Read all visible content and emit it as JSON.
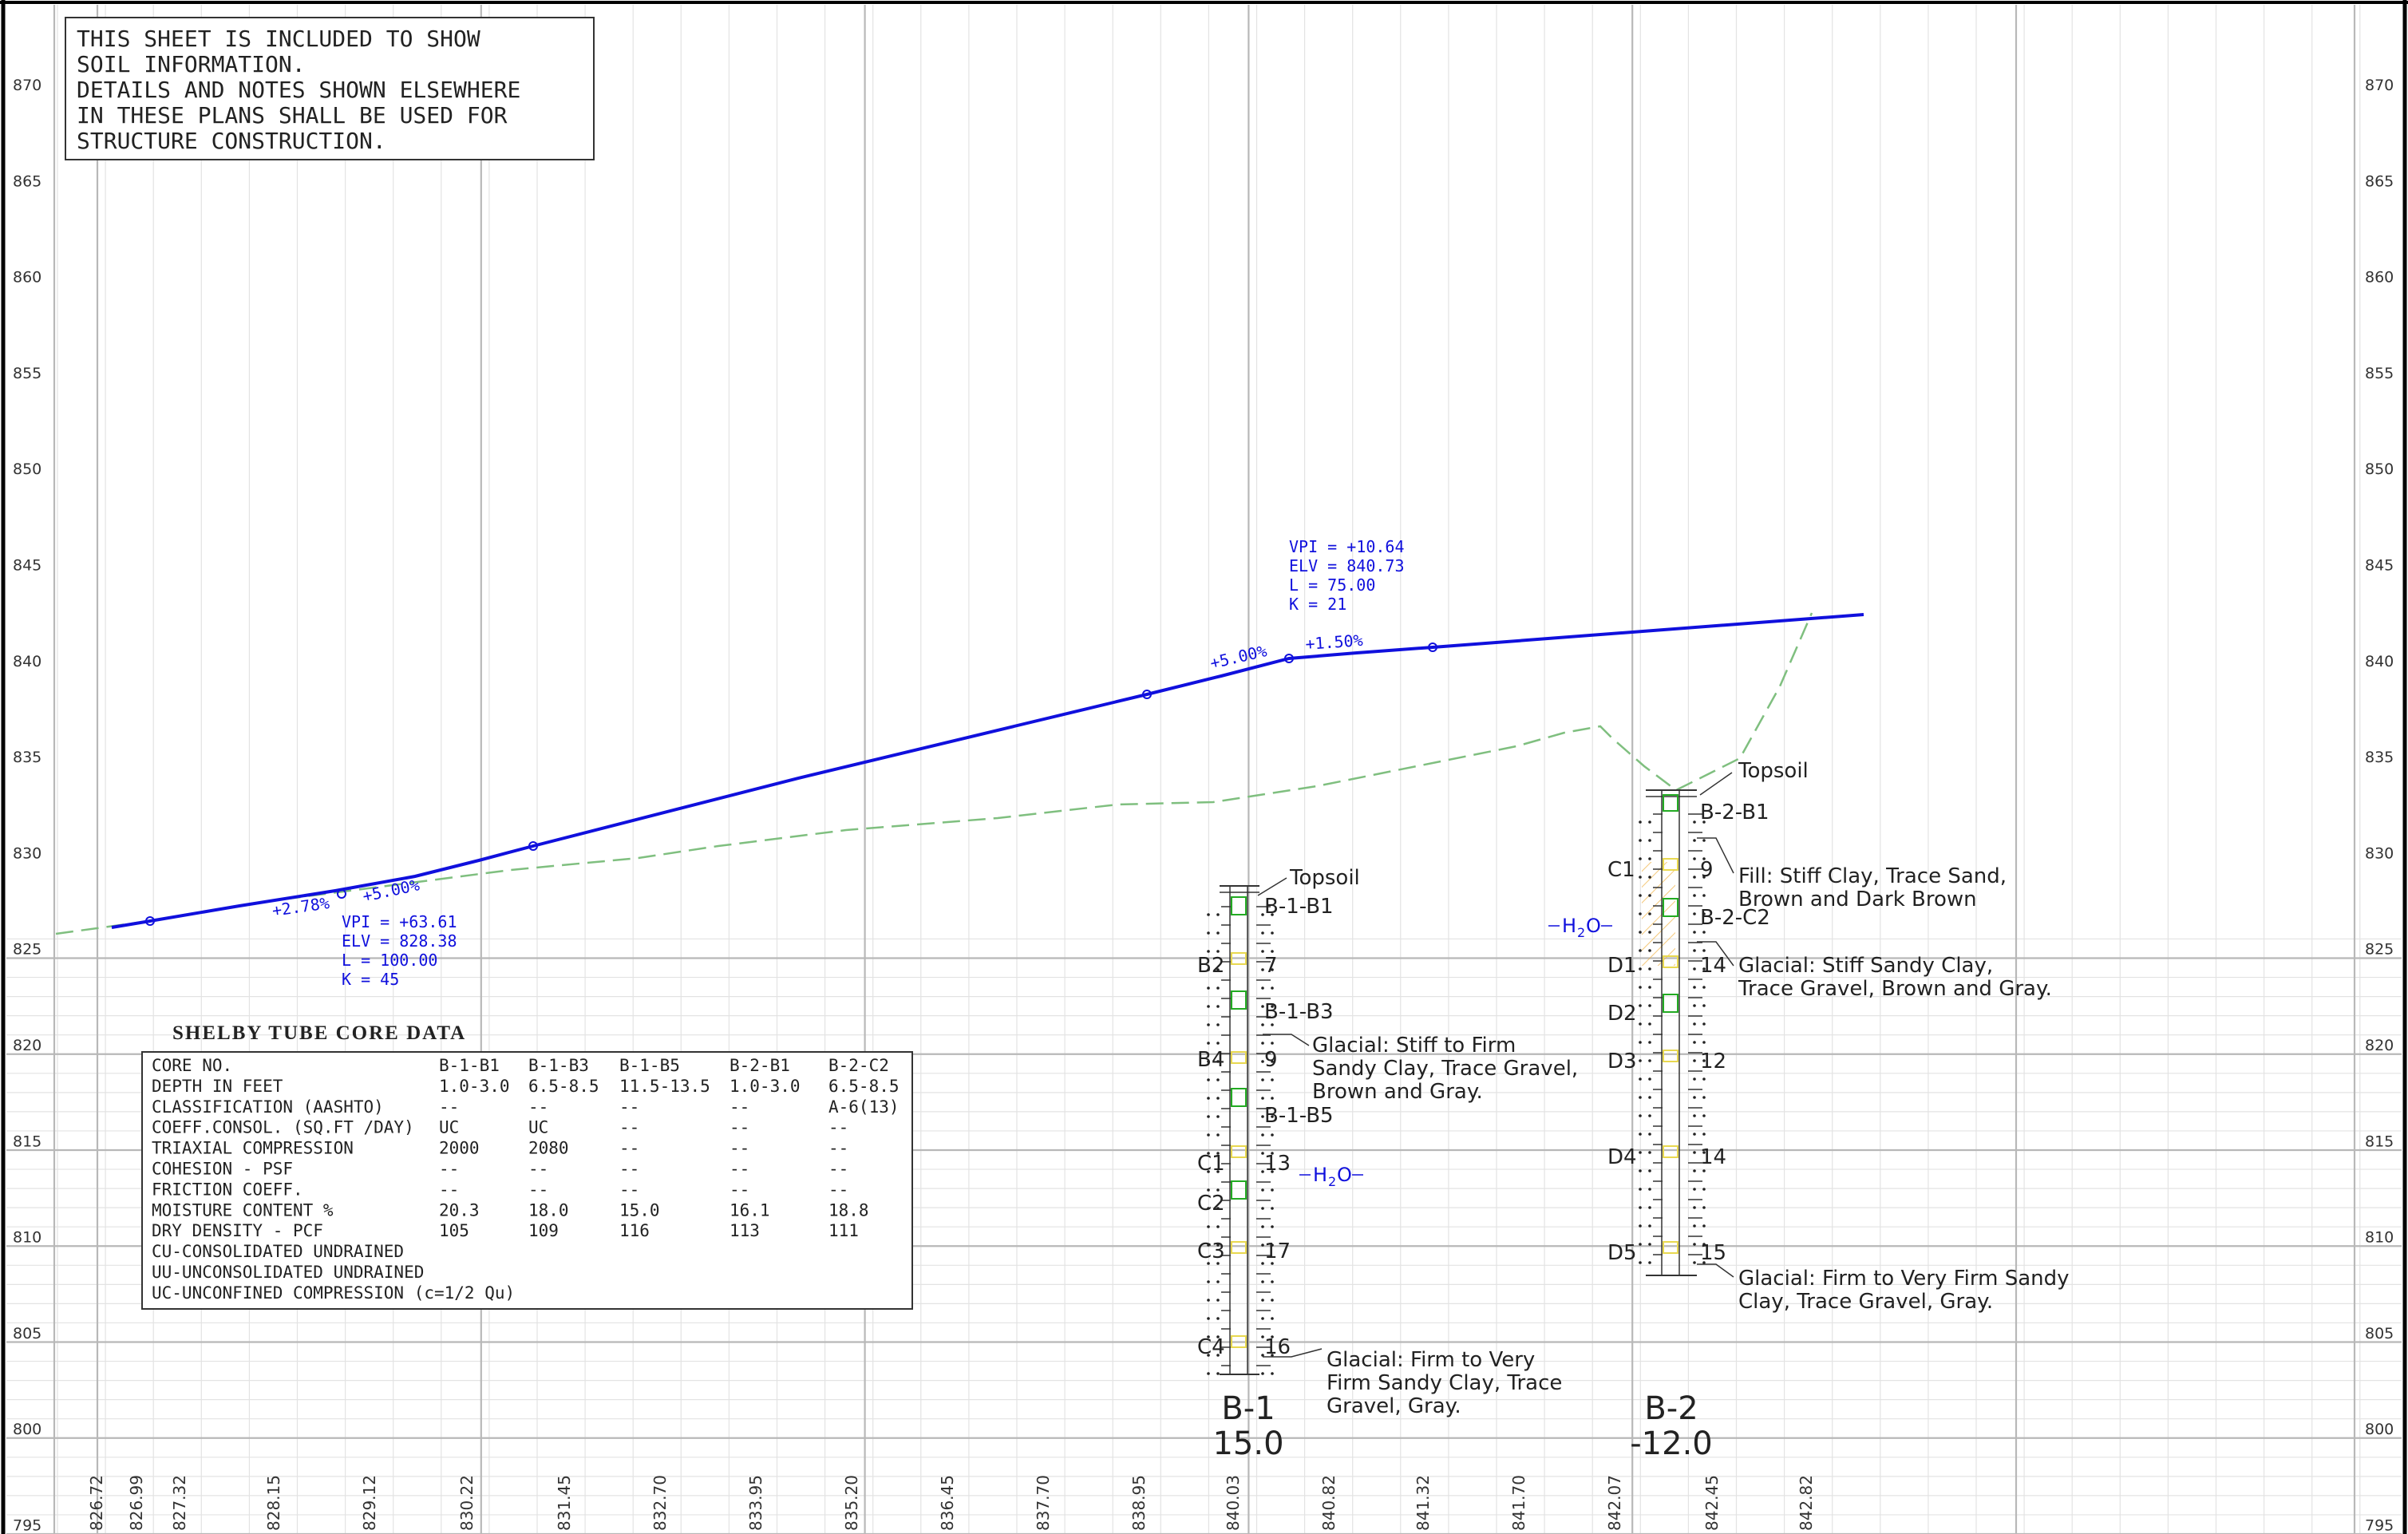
{
  "note_box": {
    "lines": [
      "THIS SHEET IS INCLUDED TO SHOW",
      "SOIL INFORMATION.",
      "DETAILS AND NOTES SHOWN ELSEWHERE",
      "IN THESE PLANS SHALL BE USED FOR",
      "STRUCTURE CONSTRUCTION."
    ]
  },
  "elevation_labels": [
    "870",
    "865",
    "860",
    "855",
    "850",
    "845",
    "840",
    "835",
    "830",
    "825",
    "820",
    "815",
    "810",
    "805",
    "800",
    "795"
  ],
  "bottom_labels": [
    "826.72",
    "826.99",
    "827.32",
    "828.15",
    "829.12",
    "830.22",
    "831.45",
    "832.70",
    "833.95",
    "835.20",
    "836.45",
    "837.70",
    "838.95",
    "840.03",
    "840.82",
    "841.32",
    "841.70",
    "842.07",
    "842.45",
    "842.82"
  ],
  "profile": {
    "grade_left": "+2.78%",
    "grade_mid_left": "+5.00%",
    "grade_mid_right": "+5.00%",
    "grade_right": "+1.50%",
    "vpi1": [
      "VPI = +63.61",
      "ELV = 828.38",
      "L = 100.00",
      "K = 45"
    ],
    "vpi2": [
      "VPI = +10.64",
      "ELV = 840.73",
      "L = 75.00",
      "K = 21"
    ],
    "colors": {
      "profile": "#1010dd",
      "ground": "#7fbf7f"
    }
  },
  "shelby": {
    "title": "SHELBY TUBE CORE DATA",
    "rows": [
      [
        "CORE NO.",
        "B-1-B1",
        "B-1-B3",
        "B-1-B5",
        "B-2-B1",
        "B-2-C2"
      ],
      [
        "DEPTH IN FEET",
        "1.0-3.0",
        "6.5-8.5",
        "11.5-13.5",
        "1.0-3.0",
        "6.5-8.5"
      ],
      [
        "CLASSIFICATION (AASHTO)",
        "--",
        "--",
        "--",
        "--",
        "A-6(13)"
      ],
      [
        "COEFF.CONSOL. (SQ.FT /DAY)",
        "UC",
        "UC",
        "--",
        "--",
        "--"
      ],
      [
        "TRIAXIAL COMPRESSION",
        "2000",
        "2080",
        "--",
        "--",
        "--"
      ],
      [
        "COHESION - PSF",
        "--",
        "--",
        "--",
        "--",
        "--"
      ],
      [
        "FRICTION COEFF.",
        "--",
        "--",
        "--",
        "--",
        "--"
      ],
      [
        "MOISTURE CONTENT %",
        "20.3",
        "18.0",
        "15.0",
        "16.1",
        "18.8"
      ],
      [
        "DRY DENSITY - PCF",
        "105",
        "109",
        "116",
        "113",
        "111"
      ]
    ],
    "footnotes": [
      "CU-CONSOLIDATED UNDRAINED",
      "UU-UNCONSOLIDATED UNDRAINED",
      "UC-UNCONFINED COMPRESSION (c=1/2 Qu)"
    ]
  },
  "boring1": {
    "name": "B-1",
    "station": "15.0",
    "topsoil": "Topsoil",
    "tube_labels": [
      "B-1-B1",
      "B-1-B3",
      "B-1-B5"
    ],
    "sample_labels": [
      "B2",
      "B4",
      "C1",
      "C2",
      "C3",
      "C4"
    ],
    "blow_counts": [
      "7",
      "9",
      "13",
      "17",
      "16"
    ],
    "water": "H",
    "water_sub": "2",
    "water_tail": "O",
    "layer1": [
      "Glacial: Stiff to Firm",
      "Sandy Clay, Trace Gravel,",
      "Brown and Gray."
    ],
    "layer2": [
      "Glacial: Firm to Very",
      "Firm Sandy Clay, Trace",
      "Gravel, Gray."
    ]
  },
  "boring2": {
    "name": "B-2",
    "station": "-12.0",
    "topsoil": "Topsoil",
    "tube_labels": [
      "B-2-B1",
      "B-2-C2"
    ],
    "sample_labels": [
      "C1",
      "D1",
      "D2",
      "D3",
      "D4",
      "D5"
    ],
    "blow_counts": [
      "9",
      "14",
      "12",
      "14",
      "15"
    ],
    "water": "H",
    "water_sub": "2",
    "water_tail": "O",
    "layer1": [
      "Fill: Stiff Clay, Trace Sand,",
      "Brown and Dark Brown"
    ],
    "layer2": [
      "Glacial: Stiff Sandy Clay,",
      "Trace Gravel, Brown and Gray."
    ],
    "layer3": [
      "Glacial: Firm to Very Firm Sandy",
      "Clay, Trace Gravel, Gray."
    ]
  }
}
